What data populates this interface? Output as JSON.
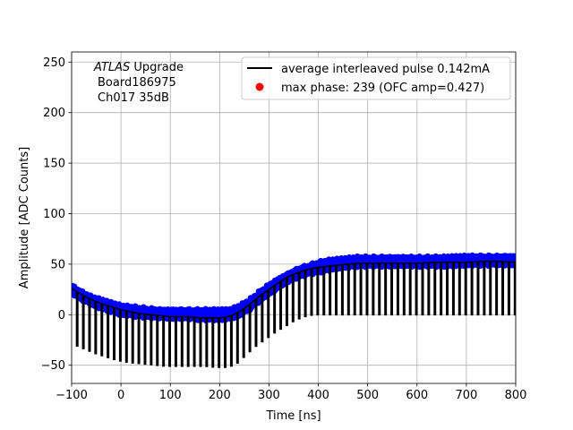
{
  "chart_data": {
    "type": "line",
    "title": "",
    "xlabel": "Time [ns]",
    "ylabel": "Amplitude [ADC Counts]",
    "xlim": [
      -100,
      800
    ],
    "ylim": [
      -68,
      260
    ],
    "xticks": [
      -100,
      0,
      100,
      200,
      300,
      400,
      500,
      600,
      700,
      800
    ],
    "yticks": [
      -50,
      0,
      50,
      100,
      150,
      200,
      250
    ],
    "xtick_labels": [
      "−100",
      "0",
      "100",
      "200",
      "300",
      "400",
      "500",
      "600",
      "700",
      "800"
    ],
    "ytick_labels": [
      "−50",
      "0",
      "50",
      "100",
      "150",
      "200",
      "250"
    ],
    "grid": true,
    "legend_position": "top-right",
    "annotation": {
      "line1_italic": "ATLAS",
      "line1_rest": " Upgrade",
      "line2": "Board186975",
      "line3": "Ch017 35dB"
    },
    "series": [
      {
        "name": "average interleaved pulse 0.142mA",
        "style": "line",
        "color": "#000000",
        "pulse_period_ns": 12.5,
        "pulse_width_ns": 2.5,
        "baseline": 0,
        "envelope_top": {
          "x": [
            -100,
            -80,
            -60,
            -40,
            -20,
            0,
            20,
            40,
            60,
            80,
            100,
            120,
            140,
            160,
            180,
            200,
            220,
            240,
            260,
            280,
            300,
            320,
            340,
            360,
            380,
            400,
            420,
            440,
            460,
            480,
            500,
            550,
            600,
            650,
            700,
            750,
            800
          ],
          "y": [
            26,
            20,
            15,
            11,
            8,
            5,
            3,
            1,
            0,
            -1,
            -2,
            -2,
            -2,
            -3,
            -3,
            -3,
            -2,
            3,
            10,
            18,
            25,
            32,
            38,
            42,
            45,
            47,
            48,
            49,
            50,
            51,
            51,
            51,
            51,
            52,
            52,
            53,
            52
          ]
        },
        "envelope_bottom": {
          "x": [
            -100,
            -80,
            -60,
            -40,
            -20,
            0,
            20,
            40,
            60,
            80,
            100,
            120,
            140,
            160,
            180,
            200,
            220,
            240,
            260,
            280,
            300,
            320,
            340,
            360,
            380,
            400,
            420,
            440,
            460,
            480,
            500,
            800
          ],
          "y": [
            -31,
            -35,
            -39,
            -42,
            -45,
            -47,
            -48,
            -49,
            -50,
            -51,
            -51,
            -51,
            -51,
            -51,
            -52,
            -52,
            -50,
            -41,
            -32,
            -25,
            -18,
            -12,
            -6,
            -2,
            0,
            0,
            0,
            0,
            0,
            0,
            0,
            0
          ]
        }
      },
      {
        "name": "max phase: 239 (OFC amp=0.427)",
        "style": "scatter",
        "color": "#0000ff",
        "envelope_top": {
          "x": [
            -100,
            -80,
            -60,
            -40,
            -20,
            0,
            20,
            40,
            60,
            80,
            100,
            120,
            140,
            160,
            180,
            200,
            220,
            240,
            260,
            280,
            300,
            320,
            340,
            360,
            380,
            400,
            420,
            440,
            460,
            480,
            500,
            550,
            600,
            650,
            700,
            750,
            800
          ],
          "y": [
            30,
            24,
            19,
            16,
            13,
            10,
            9,
            8,
            7,
            6,
            6,
            6,
            6,
            6,
            6,
            6,
            6,
            10,
            16,
            24,
            31,
            37,
            42,
            47,
            50,
            53,
            55,
            56,
            57,
            58,
            58,
            58,
            58,
            58,
            59,
            59,
            59
          ]
        },
        "envelope_bottom": {
          "x": [
            -100,
            -80,
            -60,
            -40,
            -20,
            0,
            20,
            40,
            60,
            80,
            100,
            120,
            140,
            160,
            180,
            200,
            220,
            240,
            260,
            280,
            300,
            320,
            340,
            360,
            380,
            400,
            420,
            440,
            460,
            480,
            500,
            550,
            600,
            650,
            700,
            750,
            800
          ],
          "y": [
            20,
            14,
            9,
            5,
            2,
            -1,
            -2,
            -3,
            -4,
            -4,
            -5,
            -5,
            -5,
            -6,
            -6,
            -6,
            -5,
            -2,
            4,
            12,
            19,
            26,
            32,
            36,
            39,
            41,
            43,
            45,
            46,
            47,
            47,
            47,
            47,
            47,
            48,
            48,
            48
          ]
        }
      },
      {
        "name": "max phase: 239 (OFC amp=0.427)",
        "style": "scatter",
        "color": "#ff0000",
        "x": [],
        "y": []
      }
    ]
  }
}
